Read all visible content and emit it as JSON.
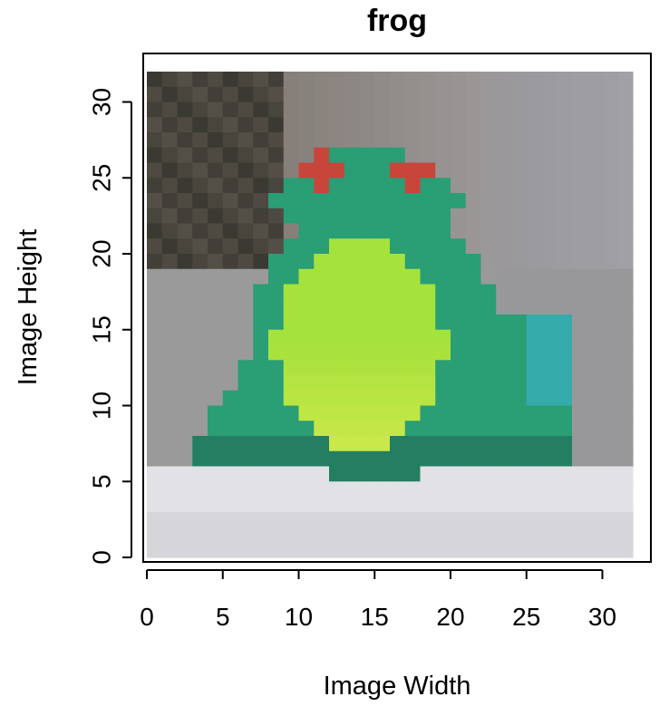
{
  "chart_data": {
    "type": "image",
    "title": "frog",
    "xlabel": "Image Width",
    "ylabel": "Image Height",
    "xlim": [
      0,
      32
    ],
    "ylim": [
      0,
      32
    ],
    "xticks": [
      0,
      5,
      10,
      15,
      20,
      25,
      30
    ],
    "yticks": [
      0,
      5,
      10,
      15,
      20,
      25,
      30
    ],
    "grid": false,
    "image_grid": {
      "width": 32,
      "height": 32,
      "description_colors": {
        "frog_body": "#A6E23C",
        "frog_skin": "#2A9E74",
        "frog_dark": "#1D5E4E",
        "frog_eye": "#C8453A",
        "ground": "#DADAE0",
        "wall": "#9A9A9A",
        "dark_bg": "#3A3A32"
      }
    }
  }
}
